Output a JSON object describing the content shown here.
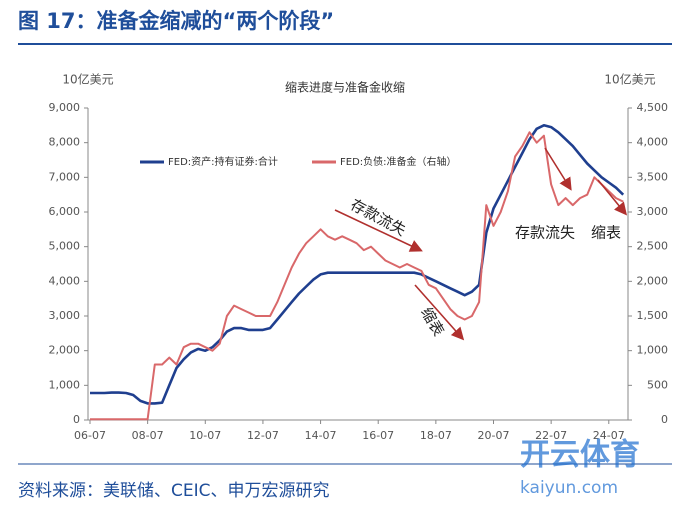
{
  "header": {
    "title": "图 17：准备金缩减的“两个阶段”"
  },
  "chart_data": {
    "type": "line",
    "title": "缩表进度与准备金收缩",
    "y_label": "10亿美元",
    "y2_label": "10亿美元",
    "x": [
      "06-07",
      "06-10",
      "07-01",
      "07-04",
      "07-07",
      "07-10",
      "08-01",
      "08-04",
      "08-07",
      "08-10",
      "09-01",
      "09-04",
      "09-07",
      "09-10",
      "10-01",
      "10-04",
      "10-07",
      "10-10",
      "11-01",
      "11-04",
      "11-07",
      "11-10",
      "12-01",
      "12-04",
      "12-07",
      "12-10",
      "13-01",
      "13-04",
      "13-07",
      "13-10",
      "14-01",
      "14-04",
      "14-07",
      "14-10",
      "15-01",
      "15-04",
      "15-07",
      "15-10",
      "16-01",
      "16-04",
      "16-07",
      "16-10",
      "17-01",
      "17-04",
      "17-07",
      "17-10",
      "18-01",
      "18-04",
      "18-07",
      "18-10",
      "19-01",
      "19-04",
      "19-07",
      "19-10",
      "20-01",
      "20-04",
      "20-07",
      "20-10",
      "21-01",
      "21-04",
      "21-07",
      "21-10",
      "22-01",
      "22-04",
      "22-07",
      "22-10",
      "23-01",
      "23-04",
      "23-07",
      "23-10",
      "24-01",
      "24-04",
      "24-07",
      "24-10",
      "25-01"
    ],
    "xlim": [
      "06-07",
      "25-03"
    ],
    "xticks": [
      "06-07",
      "08-07",
      "10-07",
      "12-07",
      "14-07",
      "16-07",
      "18-07",
      "20-07",
      "22-07",
      "24-07"
    ],
    "series": [
      {
        "name": "FED:资产:持有证券:合计",
        "color": "#1f3f8f",
        "values": [
          780,
          780,
          780,
          790,
          790,
          780,
          720,
          550,
          480,
          480,
          500,
          1000,
          1500,
          1750,
          1950,
          2050,
          2000,
          2100,
          2300,
          2550,
          2650,
          2650,
          2600,
          2600,
          2600,
          2650,
          2900,
          3150,
          3400,
          3650,
          3850,
          4050,
          4200,
          4250,
          4250,
          4250,
          4250,
          4250,
          4250,
          4250,
          4250,
          4250,
          4250,
          4250,
          4250,
          4250,
          4200,
          4100,
          4000,
          3900,
          3800,
          3700,
          3600,
          3700,
          3900,
          5400,
          6100,
          6500,
          6900,
          7300,
          7700,
          8100,
          8400,
          8500,
          8450,
          8300,
          8100,
          7900,
          7650,
          7400,
          7200,
          7000,
          6850,
          6700,
          6500
        ]
      },
      {
        "name": "FED:负债:准备金（右轴）",
        "color": "#d9686a",
        "axis": "y2",
        "values": [
          10,
          10,
          10,
          10,
          10,
          10,
          10,
          10,
          10,
          800,
          800,
          900,
          800,
          1050,
          1100,
          1100,
          1050,
          1000,
          1100,
          1500,
          1650,
          1600,
          1550,
          1500,
          1500,
          1500,
          1700,
          1950,
          2200,
          2400,
          2550,
          2650,
          2750,
          2650,
          2600,
          2650,
          2600,
          2550,
          2450,
          2500,
          2400,
          2300,
          2250,
          2200,
          2250,
          2200,
          2150,
          1950,
          1900,
          1750,
          1600,
          1500,
          1450,
          1500,
          1700,
          3100,
          2800,
          3000,
          3300,
          3800,
          3950,
          4150,
          4000,
          4100,
          3400,
          3100,
          3200,
          3100,
          3200,
          3250,
          3500,
          3400,
          3300,
          3200,
          3150
        ]
      }
    ],
    "ylim": [
      0,
      9000
    ],
    "yticks": [
      0,
      {
        "value": 1000,
        "label": "1,000"
      },
      {
        "value": 2000,
        "label": "2,000"
      },
      {
        "value": 3000,
        "label": "3,000"
      },
      {
        "value": 4000,
        "label": "4,000"
      },
      {
        "value": 5000,
        "label": "5,000"
      },
      {
        "value": 6000,
        "label": "6,000"
      },
      {
        "value": 7000,
        "label": "7,000"
      },
      {
        "value": 8000,
        "label": "8,000"
      },
      {
        "value": 9000,
        "label": "9,000"
      }
    ],
    "y2lim": [
      0,
      4500
    ],
    "y2ticks": [
      0,
      500,
      {
        "value": 1000,
        "label": "1,000"
      },
      {
        "value": 1500,
        "label": "1,500"
      },
      {
        "value": 2000,
        "label": "2,000"
      },
      {
        "value": 2500,
        "label": "2,500"
      },
      {
        "value": 3000,
        "label": "3,000"
      },
      {
        "value": 3500,
        "label": "3,500"
      },
      {
        "value": 4000,
        "label": "4,000"
      },
      {
        "value": 4500,
        "label": "4,500"
      }
    ],
    "grid": false,
    "annotations": [
      "存款流失",
      "缩表",
      "存款流失",
      "缩表"
    ]
  },
  "footer": {
    "source": "资料来源：美联储、CEIC、申万宏源研究"
  },
  "watermark": {
    "brand": "开云体育",
    "site": "kaiyun.com"
  }
}
